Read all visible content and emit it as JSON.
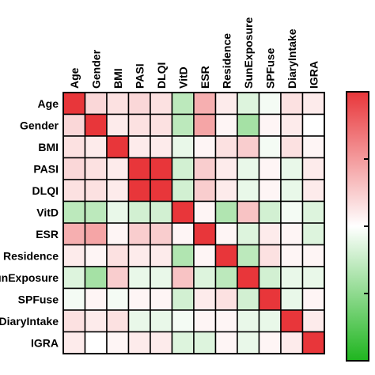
{
  "chart_data": {
    "type": "heatmap",
    "title": "",
    "xlabel": "",
    "ylabel": "",
    "variables": [
      "Age",
      "Gender",
      "BMI",
      "PASI",
      "DLQI",
      "VitD",
      "ESR",
      "Residence",
      "SunExposure",
      "SPFuse",
      "DiaryIntake",
      "IGRA"
    ],
    "row_labels": [
      "Age",
      "Gender",
      "BMI",
      "PASI",
      "DLQI",
      "VitD",
      "ESR",
      "Residence",
      "SunExposure",
      "SPFuse",
      "DiaryIntake",
      "IGRA"
    ],
    "matrix": [
      [
        1.0,
        0.2,
        0.15,
        0.2,
        0.15,
        -0.3,
        0.4,
        0.1,
        -0.15,
        -0.05,
        0.15,
        0.1
      ],
      [
        0.2,
        1.0,
        0.1,
        0.15,
        0.15,
        -0.3,
        0.45,
        0.05,
        -0.4,
        0.05,
        0.1,
        0.0
      ],
      [
        0.15,
        0.1,
        1.0,
        0.1,
        0.1,
        -0.1,
        0.05,
        0.15,
        0.25,
        -0.05,
        0.15,
        0.05
      ],
      [
        0.2,
        0.15,
        0.1,
        1.0,
        1.0,
        -0.2,
        0.25,
        0.1,
        -0.1,
        0.05,
        -0.1,
        0.1
      ],
      [
        0.15,
        0.15,
        0.1,
        1.0,
        1.0,
        -0.2,
        0.25,
        0.1,
        -0.1,
        0.05,
        -0.1,
        0.1
      ],
      [
        -0.3,
        -0.3,
        -0.1,
        -0.2,
        -0.2,
        1.0,
        0.05,
        -0.35,
        0.3,
        -0.2,
        -0.05,
        -0.15
      ],
      [
        0.4,
        0.45,
        0.05,
        0.25,
        0.25,
        0.05,
        1.0,
        0.05,
        -0.15,
        0.1,
        0.05,
        -0.15
      ],
      [
        0.1,
        0.05,
        0.15,
        0.1,
        0.1,
        -0.35,
        0.05,
        1.0,
        -0.3,
        0.15,
        0.05,
        0.05
      ],
      [
        -0.15,
        -0.4,
        0.25,
        -0.1,
        -0.1,
        0.3,
        -0.15,
        -0.3,
        1.0,
        -0.2,
        -0.1,
        -0.1
      ],
      [
        -0.05,
        0.05,
        -0.05,
        0.05,
        0.05,
        -0.2,
        0.1,
        0.15,
        -0.2,
        1.0,
        -0.1,
        0.05
      ],
      [
        0.15,
        0.1,
        0.15,
        -0.1,
        -0.1,
        -0.05,
        0.05,
        0.05,
        -0.1,
        -0.1,
        1.0,
        0.1
      ],
      [
        0.1,
        0.0,
        0.05,
        0.1,
        0.1,
        -0.15,
        -0.15,
        0.05,
        -0.1,
        0.05,
        0.1,
        1.0
      ]
    ],
    "zlim": [
      -1,
      1
    ],
    "colorbar": {
      "placement": "right",
      "colors": {
        "low": "#1fb51f",
        "mid": "#ffffff",
        "high": "#e8363a"
      }
    },
    "legend": "none",
    "grid": true
  }
}
